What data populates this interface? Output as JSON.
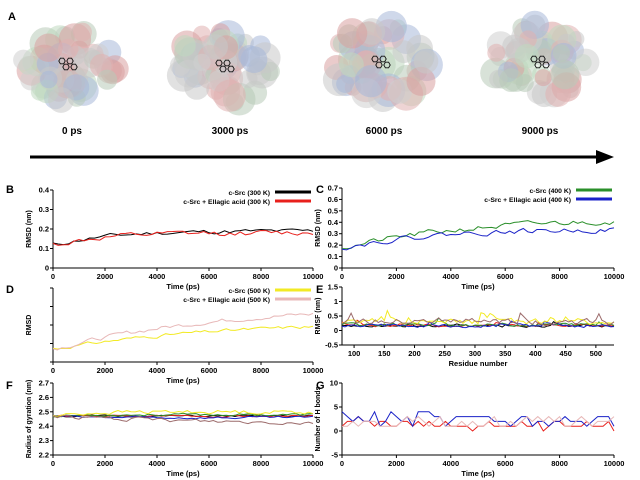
{
  "panel_a": {
    "label": "A",
    "snapshots": [
      {
        "time": "0 ps",
        "mol_x": 68,
        "mol_y": 64
      },
      {
        "time": "3000 ps",
        "mol_x": 225,
        "mol_y": 66
      },
      {
        "time": "6000 ps",
        "mol_x": 381,
        "mol_y": 62
      },
      {
        "time": "9000 ps",
        "mol_x": 540,
        "mol_y": 62
      }
    ],
    "arrow_label": "time-arrow"
  },
  "colors": {
    "black": "#000000",
    "red": "#e8201c",
    "green": "#2a8f2a",
    "blue": "#1a22c8",
    "yellow": "#f2ea24",
    "pink": "#e8b8b8",
    "brown": "#9c6b6b",
    "orange": "#f0a040",
    "purple": "#8a5fb0",
    "teal": "#2aa0a0"
  },
  "chart_data": [
    {
      "panel": "B",
      "type": "line",
      "title": "",
      "xlabel": "Time (ps)",
      "ylabel": "RMSD (nm)",
      "xlim": [
        0,
        10000
      ],
      "ylim": [
        0,
        0.4
      ],
      "xticks": [
        0,
        2000,
        4000,
        6000,
        8000,
        10000
      ],
      "yticks": [
        0,
        0.1,
        0.2,
        0.3,
        0.4
      ],
      "yticklabels": [
        "0",
        "0.1",
        "0.2",
        "0.3",
        "0.4"
      ],
      "legend": "top-right",
      "series": [
        {
          "name": "c-Src (300 K)",
          "color": "black",
          "gen": {
            "n": 50,
            "start": 0.12,
            "base": 0.19,
            "rise": 0.2,
            "noise": 0.02,
            "seed": 11
          }
        },
        {
          "name": "c-Src + Ellagic acid (300 K)",
          "color": "red",
          "gen": {
            "n": 50,
            "start": 0.12,
            "base": 0.18,
            "rise": 0.2,
            "noise": 0.025,
            "seed": 12
          }
        }
      ]
    },
    {
      "panel": "C",
      "type": "line",
      "title": "",
      "xlabel": "Time (ps)",
      "ylabel": "RMSD (nm)",
      "xlim": [
        0,
        10000
      ],
      "ylim": [
        0,
        0.7
      ],
      "xticks": [
        0,
        2000,
        4000,
        6000,
        8000,
        10000
      ],
      "yticks": [
        0,
        0.1,
        0.2,
        0.3,
        0.4,
        0.5,
        0.6,
        0.7
      ],
      "yticklabels": [
        "0",
        "0.1",
        "0.2",
        "0.3",
        "0.4",
        "0.5",
        "0.6",
        "0.7"
      ],
      "legend": "top-right",
      "series": [
        {
          "name": "c-Src (400 K)",
          "color": "green",
          "gen": {
            "n": 60,
            "start": 0.18,
            "base": 0.44,
            "rise": 0.45,
            "noise": 0.045,
            "seed": 21
          }
        },
        {
          "name": "c-Src + Ellagic acid (400 K)",
          "color": "blue",
          "gen": {
            "n": 60,
            "start": 0.18,
            "base": 0.34,
            "rise": 0.3,
            "noise": 0.04,
            "seed": 22
          }
        }
      ]
    },
    {
      "panel": "D",
      "type": "line",
      "title": "",
      "xlabel": "Time (ps)",
      "ylabel": "RMSD",
      "xlim": [
        0,
        10000
      ],
      "ylim": [
        0,
        1.0
      ],
      "xticks": [
        0,
        2000,
        4000,
        6000,
        8000,
        10000
      ],
      "yticks": [
        0,
        0.25,
        0.5,
        0.75,
        1.0
      ],
      "yticklabels": [
        "",
        "",
        "",
        "",
        ""
      ],
      "legend": "top-right",
      "series": [
        {
          "name": "c-Src (500 K)",
          "color": "yellow",
          "gen": {
            "n": 60,
            "start": 0.18,
            "base": 0.55,
            "rise": 0.6,
            "noise": 0.04,
            "seed": 31
          }
        },
        {
          "name": "c-Src + Ellagic acid (500 K)",
          "color": "pink",
          "gen": {
            "n": 60,
            "start": 0.18,
            "base": 0.76,
            "rise": 0.6,
            "noise": 0.05,
            "seed": 32
          }
        }
      ]
    },
    {
      "panel": "E",
      "type": "line",
      "title": "",
      "xlabel": "Residue number",
      "ylabel": "RMSF (nm)",
      "xlim": [
        80,
        530
      ],
      "ylim": [
        -0.5,
        1.5
      ],
      "xticks": [
        100,
        150,
        200,
        250,
        300,
        350,
        400,
        450,
        500
      ],
      "yticks": [
        -0.5,
        0,
        0.5,
        1,
        1.5
      ],
      "yticklabels": [
        "-0.5",
        "0",
        "0.5",
        "1",
        "1.5"
      ],
      "series": [
        {
          "name": "c-Src (300 K)",
          "color": "black",
          "gen": {
            "n": 90,
            "start": 0.15,
            "base": 0.15,
            "rise": 0.1,
            "noise": 0.07,
            "seed": 41,
            "spiky": true
          }
        },
        {
          "name": "c-Src + Ellagic acid (300 K)",
          "color": "red",
          "gen": {
            "n": 90,
            "start": 0.15,
            "base": 0.17,
            "rise": 0.1,
            "noise": 0.08,
            "seed": 42,
            "spiky": true
          }
        },
        {
          "name": "c-Src (400 K)",
          "color": "green",
          "gen": {
            "n": 90,
            "start": 0.2,
            "base": 0.2,
            "rise": 0.1,
            "noise": 0.1,
            "seed": 43,
            "spiky": true
          }
        },
        {
          "name": "c-Src + Ellagic acid (400 K)",
          "color": "blue",
          "gen": {
            "n": 90,
            "start": 0.15,
            "base": 0.16,
            "rise": 0.1,
            "noise": 0.09,
            "seed": 44,
            "spiky": true
          }
        },
        {
          "name": "c-Src (500 K)",
          "color": "yellow",
          "gen": {
            "n": 90,
            "start": 0.3,
            "base": 0.3,
            "rise": 0.1,
            "noise": 0.18,
            "seed": 45,
            "spiky": true
          }
        },
        {
          "name": "c-Src + Ellagic acid (500 K)",
          "color": "brown",
          "gen": {
            "n": 90,
            "start": 0.3,
            "base": 0.3,
            "rise": 0.1,
            "noise": 0.18,
            "seed": 46,
            "spiky": true
          }
        }
      ]
    },
    {
      "panel": "F",
      "type": "line",
      "title": "",
      "xlabel": "Time (ps)",
      "ylabel": "Radius of gyration (nm)",
      "xlim": [
        0,
        10000
      ],
      "ylim": [
        2.2,
        2.7
      ],
      "xticks": [
        0,
        2000,
        4000,
        6000,
        8000,
        10000
      ],
      "yticks": [
        2.2,
        2.3,
        2.4,
        2.5,
        2.6,
        2.7
      ],
      "yticklabels": [
        "2.2",
        "2.3",
        "2.4",
        "2.5",
        "2.6",
        "2.7"
      ],
      "series": [
        {
          "name": "c-Src (300 K)",
          "color": "black",
          "gen": {
            "n": 60,
            "start": 2.47,
            "base": 2.47,
            "rise": 0.1,
            "noise": 0.012,
            "seed": 51
          }
        },
        {
          "name": "c-Src + Ellagic acid (300 K)",
          "color": "red",
          "gen": {
            "n": 60,
            "start": 2.47,
            "base": 2.47,
            "rise": 0.1,
            "noise": 0.012,
            "seed": 52
          }
        },
        {
          "name": "c-Src (400 K)",
          "color": "green",
          "gen": {
            "n": 60,
            "start": 2.47,
            "base": 2.48,
            "rise": 0.1,
            "noise": 0.015,
            "seed": 53
          }
        },
        {
          "name": "c-Src + Ellagic acid (400 K)",
          "color": "blue",
          "gen": {
            "n": 60,
            "start": 2.47,
            "base": 2.46,
            "rise": 0.1,
            "noise": 0.015,
            "seed": 54
          }
        },
        {
          "name": "c-Src (500 K)",
          "color": "yellow",
          "gen": {
            "n": 60,
            "start": 2.47,
            "base": 2.5,
            "rise": 0.1,
            "noise": 0.025,
            "seed": 55
          }
        },
        {
          "name": "c-Src + Ellagic acid (500 K)",
          "color": "brown",
          "gen": {
            "n": 60,
            "start": 2.47,
            "base": 2.42,
            "rise": 0.5,
            "noise": 0.025,
            "seed": 56
          }
        }
      ]
    },
    {
      "panel": "G",
      "type": "line",
      "title": "",
      "xlabel": "Time (ps)",
      "ylabel": "Number of H bonds",
      "xlim": [
        0,
        10000
      ],
      "ylim": [
        -5,
        10
      ],
      "xticks": [
        0,
        2000,
        4000,
        6000,
        8000,
        10000
      ],
      "yticks": [
        -5,
        0,
        5,
        10
      ],
      "yticklabels": [
        "-5",
        "0",
        "5",
        "10"
      ],
      "series": [
        {
          "name": "c-Src + Ellagic acid (300 K)",
          "color": "red",
          "gen": {
            "n": 50,
            "start": 2,
            "base": 1,
            "rise": 0.3,
            "noise": 0.8,
            "seed": 61,
            "step": true
          }
        },
        {
          "name": "c-Src + Ellagic acid (400 K)",
          "color": "blue",
          "gen": {
            "n": 50,
            "start": 3,
            "base": 2.5,
            "rise": 0.1,
            "noise": 1.3,
            "seed": 62,
            "step": true
          }
        },
        {
          "name": "c-Src + Ellagic acid (500 K)",
          "color": "pink",
          "gen": {
            "n": 50,
            "start": 1,
            "base": 2.5,
            "rise": 0.6,
            "noise": 1.3,
            "seed": 63,
            "step": true
          }
        }
      ]
    }
  ]
}
